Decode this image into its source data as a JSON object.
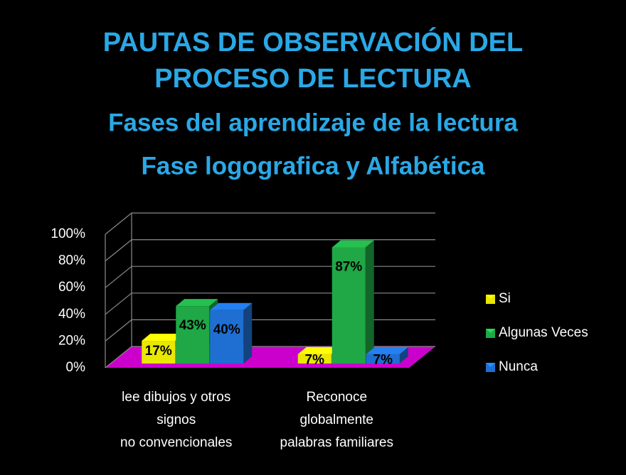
{
  "chart_data": {
    "type": "bar3d",
    "title": [
      "PAUTAS DE OBSERVACIÓN DEL",
      "PROCESO DE LECTURA"
    ],
    "subtitle": [
      "Fases del aprendizaje de la lectura",
      "Fase logografica   y Alfabética"
    ],
    "categories": [
      [
        "lee dibujos y otros",
        "signos",
        "no convencionales"
      ],
      [
        "Reconoce",
        "globalmente",
        "palabras familiares"
      ]
    ],
    "series": [
      {
        "name": "Si",
        "color": "#e8e800",
        "values": [
          17,
          7
        ],
        "value_labels": [
          "17%",
          "7%"
        ]
      },
      {
        "name": "Algunas Veces",
        "color": "#1fa845",
        "values": [
          43,
          87
        ],
        "value_labels": [
          "43%",
          "87%"
        ]
      },
      {
        "name": "Nunca",
        "color": "#1f6fd2",
        "values": [
          40,
          7
        ],
        "value_labels": [
          "40%",
          "7%"
        ]
      }
    ],
    "ylim": [
      0,
      100
    ],
    "yticks": [
      {
        "value": 0,
        "label": "0%"
      },
      {
        "value": 20,
        "label": "20%"
      },
      {
        "value": 40,
        "label": "40%"
      },
      {
        "value": 60,
        "label": "60%"
      },
      {
        "value": 80,
        "label": "80%"
      },
      {
        "value": 100,
        "label": "100%"
      }
    ],
    "grid": true,
    "floor_color": "#cc00cc",
    "legend": "right"
  }
}
